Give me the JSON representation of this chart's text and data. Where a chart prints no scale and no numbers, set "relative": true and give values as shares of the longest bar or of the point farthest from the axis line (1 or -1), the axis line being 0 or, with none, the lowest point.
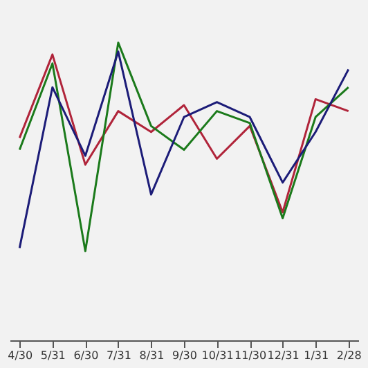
{
  "chart_data": {
    "type": "line",
    "relative": true,
    "categories": [
      "4/30",
      "5/31",
      "6/30",
      "7/31",
      "8/31",
      "9/30",
      "10/31",
      "11/30",
      "12/31",
      "1/31",
      "2/28"
    ],
    "series": [
      {
        "color": "#b0243a",
        "values": [
          0.68,
          0.96,
          0.59,
          0.77,
          0.7,
          0.79,
          0.61,
          0.72,
          0.43,
          0.81,
          0.77
        ]
      },
      {
        "color": "#1b7a1b",
        "values": [
          0.64,
          0.93,
          0.3,
          1.0,
          0.72,
          0.64,
          0.77,
          0.73,
          0.41,
          0.75,
          0.85
        ]
      },
      {
        "color": "#1c1c78",
        "values": [
          0.31,
          0.85,
          0.62,
          0.97,
          0.49,
          0.75,
          0.8,
          0.75,
          0.53,
          0.7,
          0.91
        ]
      }
    ],
    "grid": false,
    "marker": "none",
    "line_style": "solid"
  }
}
